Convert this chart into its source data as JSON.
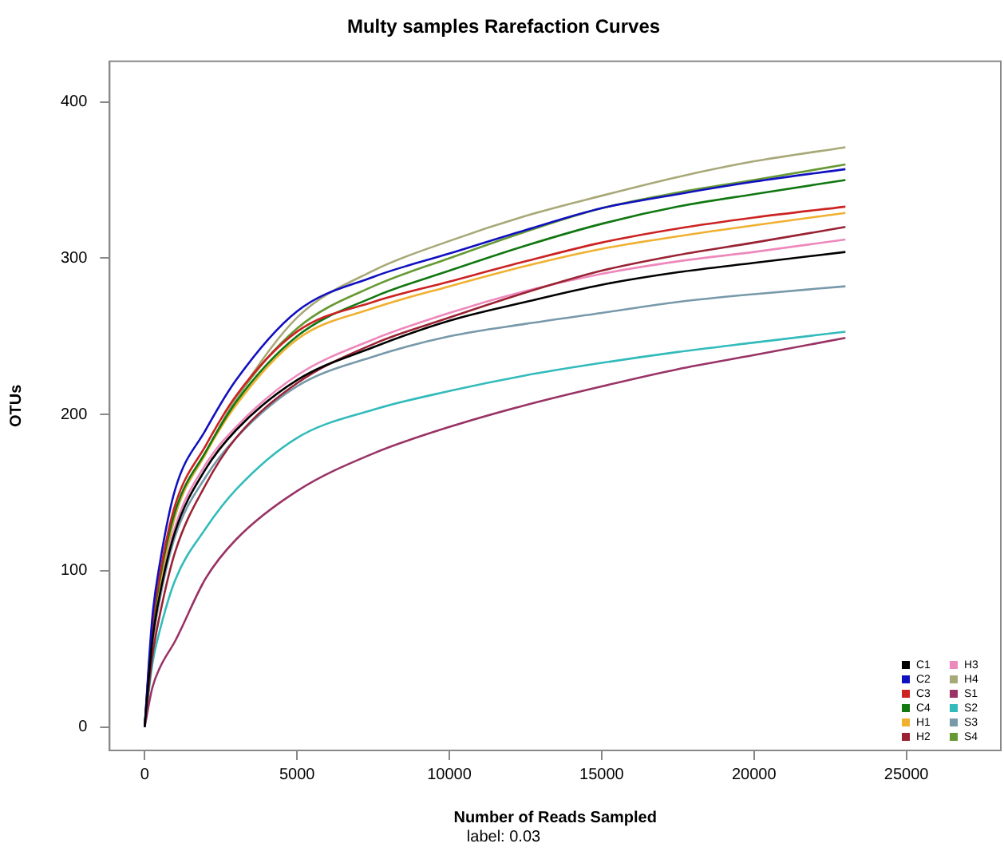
{
  "chart_data": {
    "type": "line",
    "title": "Multy samples Rarefaction Curves",
    "xlabel": "Number of Reads Sampled",
    "ylabel": "OTUs",
    "annotations": [
      "label: 0.03"
    ],
    "x": [
      0,
      250,
      500,
      1000,
      2000,
      3000,
      5000,
      7500,
      10000,
      12500,
      15000,
      17500,
      20000,
      23000
    ],
    "xlim": [
      -1150,
      28100
    ],
    "xticks": [
      0,
      5000,
      10000,
      15000,
      20000,
      25000
    ],
    "ylim": [
      -15,
      426
    ],
    "yticks": [
      0,
      100,
      200,
      300,
      400
    ],
    "grid": false,
    "legend": "bottom right",
    "marker": "none",
    "line_style": "solid",
    "series": [
      {
        "name": "C1",
        "color": "#000000",
        "values": [
          0,
          55,
          85,
          125,
          165,
          190,
          222,
          243,
          260,
          272,
          283,
          291,
          297,
          304
        ]
      },
      {
        "name": "C2",
        "color": "#1010c0",
        "values": [
          0,
          70,
          105,
          152,
          190,
          222,
          266,
          288,
          303,
          318,
          332,
          341,
          349,
          357
        ]
      },
      {
        "name": "C3",
        "color": "#cc2222",
        "values": [
          0,
          65,
          98,
          142,
          180,
          212,
          253,
          272,
          285,
          298,
          310,
          319,
          326,
          333
        ]
      },
      {
        "name": "C4",
        "color": "#117711",
        "values": [
          0,
          62,
          95,
          138,
          176,
          208,
          250,
          275,
          292,
          308,
          322,
          333,
          341,
          350
        ]
      },
      {
        "name": "H1",
        "color": "#f0b030",
        "values": [
          0,
          60,
          92,
          136,
          175,
          206,
          248,
          268,
          282,
          295,
          306,
          314,
          321,
          329
        ]
      },
      {
        "name": "H2",
        "color": "#992233",
        "values": [
          0,
          45,
          72,
          112,
          155,
          185,
          220,
          245,
          262,
          278,
          292,
          302,
          310,
          320
        ]
      },
      {
        "name": "H3",
        "color": "#ee88bb",
        "values": [
          0,
          55,
          85,
          128,
          168,
          192,
          225,
          248,
          265,
          279,
          290,
          298,
          304,
          312
        ]
      },
      {
        "name": "H4",
        "color": "#a8a878",
        "values": [
          0,
          55,
          88,
          135,
          175,
          210,
          262,
          292,
          311,
          327,
          340,
          352,
          362,
          371
        ]
      },
      {
        "name": "S1",
        "color": "#993366",
        "values": [
          0,
          25,
          38,
          55,
          95,
          120,
          151,
          175,
          192,
          206,
          218,
          229,
          238,
          249
        ]
      },
      {
        "name": "S2",
        "color": "#33bbbb",
        "values": [
          0,
          40,
          62,
          94,
          127,
          152,
          185,
          203,
          215,
          225,
          233,
          240,
          246,
          253
        ]
      },
      {
        "name": "S3",
        "color": "#7799aa",
        "values": [
          0,
          52,
          82,
          122,
          160,
          185,
          218,
          237,
          250,
          258,
          265,
          272,
          277,
          282
        ]
      },
      {
        "name": "S4",
        "color": "#669933",
        "values": [
          0,
          58,
          90,
          136,
          175,
          210,
          255,
          282,
          300,
          317,
          332,
          342,
          350,
          360
        ]
      }
    ]
  }
}
